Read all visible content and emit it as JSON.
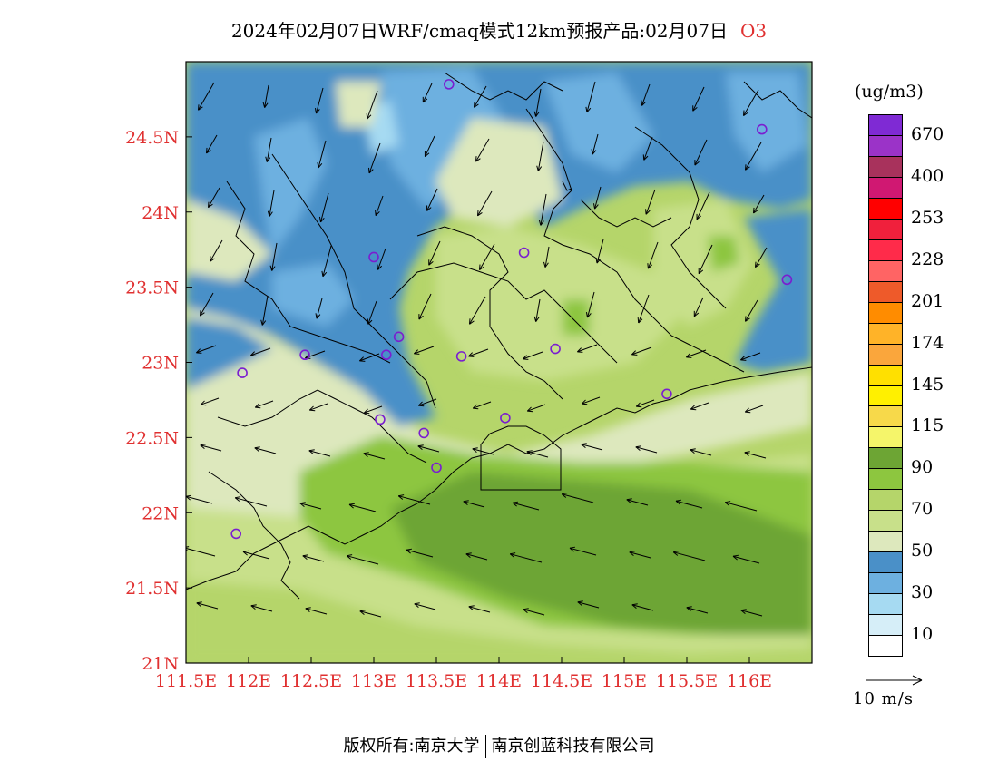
{
  "title": {
    "main": "2024年02月07日WRF/cmaq模式12km预报产品:02月07日",
    "pollutant": "O3"
  },
  "map": {
    "lon_range": [
      111.5,
      116.5
    ],
    "lat_range": [
      21,
      25
    ],
    "lon_ticks": [
      "111.5E",
      "112E",
      "112.5E",
      "113E",
      "113.5E",
      "114E",
      "114.5E",
      "115E",
      "115.5E",
      "116E"
    ],
    "lat_ticks": [
      "21N",
      "21.5N",
      "22N",
      "22.5N",
      "23N",
      "23.5N",
      "24N",
      "24.5N"
    ],
    "tick_color": "#e03030",
    "stations": [
      [
        113.6,
        24.85
      ],
      [
        116.1,
        24.55
      ],
      [
        113.0,
        23.7
      ],
      [
        114.2,
        23.73
      ],
      [
        116.3,
        23.55
      ],
      [
        112.45,
        23.05
      ],
      [
        111.95,
        22.93
      ],
      [
        113.1,
        23.05
      ],
      [
        113.2,
        23.17
      ],
      [
        113.7,
        23.04
      ],
      [
        114.45,
        23.09
      ],
      [
        115.34,
        22.79
      ],
      [
        113.05,
        22.62
      ],
      [
        113.4,
        22.53
      ],
      [
        114.05,
        22.63
      ],
      [
        113.5,
        22.3
      ],
      [
        111.9,
        21.86
      ]
    ]
  },
  "colorbar": {
    "unit": "(ug/m3)",
    "levels": [
      {
        "color": "#7F2AD4",
        "label": "670"
      },
      {
        "color": "#9B33C8",
        "label": ""
      },
      {
        "color": "#A8325C",
        "label": "400"
      },
      {
        "color": "#D01872",
        "label": ""
      },
      {
        "color": "#FF0000",
        "label": "253"
      },
      {
        "color": "#F0203C",
        "label": ""
      },
      {
        "color": "#FF2B4A",
        "label": "228"
      },
      {
        "color": "#FF6464",
        "label": ""
      },
      {
        "color": "#EE5A2A",
        "label": "201"
      },
      {
        "color": "#FF8C00",
        "label": ""
      },
      {
        "color": "#FFB328",
        "label": "174"
      },
      {
        "color": "#FAA63C",
        "label": ""
      },
      {
        "color": "#FFE000",
        "label": "145"
      },
      {
        "color": "#FFF000",
        "label": ""
      },
      {
        "color": "#F7D94A",
        "label": "115"
      },
      {
        "color": "#F5F56A",
        "label": ""
      },
      {
        "color": "#6DA534",
        "label": "90"
      },
      {
        "color": "#8DC63F",
        "label": ""
      },
      {
        "color": "#B5D56A",
        "label": "70"
      },
      {
        "color": "#C8E08A",
        "label": ""
      },
      {
        "color": "#DDE8BD",
        "label": "50"
      },
      {
        "color": "#4A90C8",
        "label": ""
      },
      {
        "color": "#6DB0E0",
        "label": "30"
      },
      {
        "color": "#A6DAF2",
        "label": ""
      },
      {
        "color": "#D6EEF8",
        "label": "10"
      },
      {
        "color": "#FFFFFF",
        "label": ""
      }
    ]
  },
  "wind_legend": {
    "label": "10 m/s"
  },
  "footer": {
    "left": "版权所有:南京大学",
    "right": "南京创蓝科技有限公司"
  }
}
